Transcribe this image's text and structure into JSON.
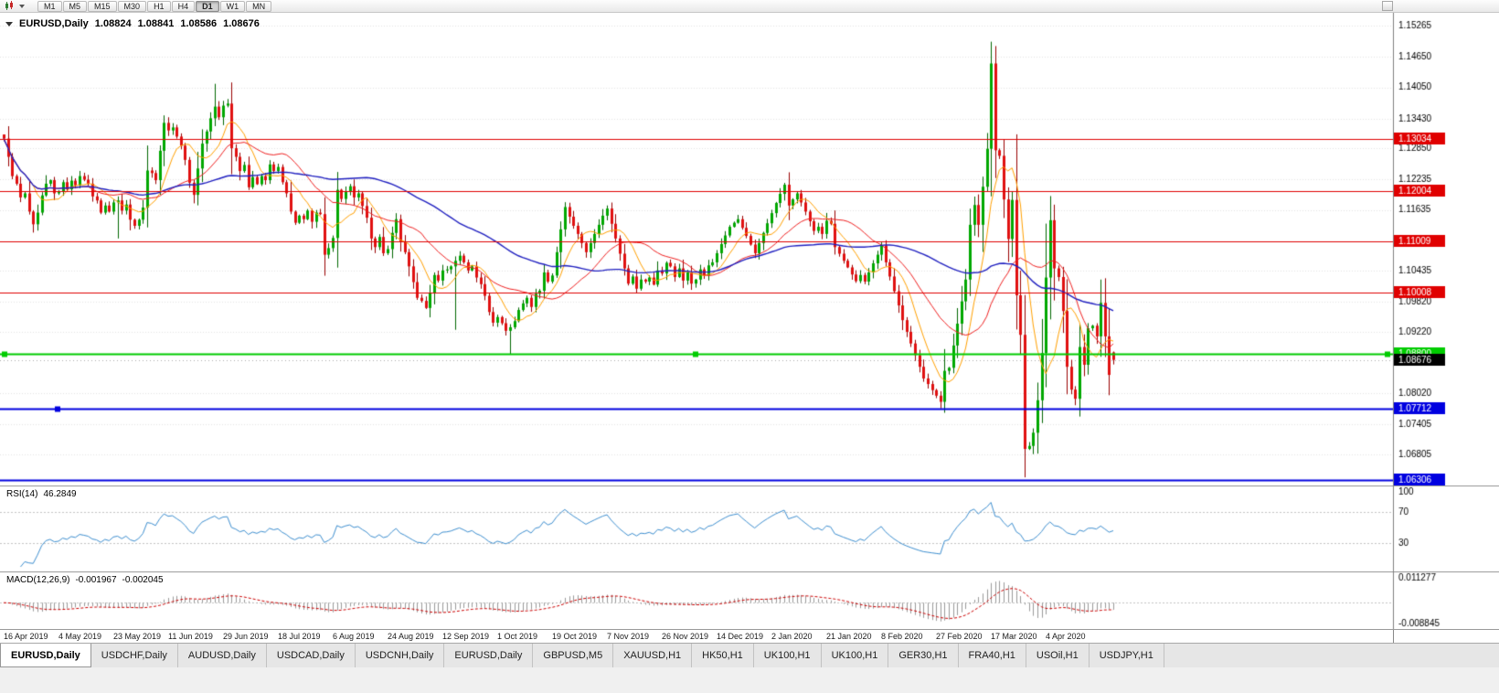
{
  "colors": {
    "bull": "#00A800",
    "bear": "#E01010",
    "bull_wick": "#006600",
    "bear_wick": "#990000",
    "ma_fast": "#FFA000",
    "ma_mid": "#F02020",
    "ma_slow": "#2020C0",
    "rsi_line": "#3E8FD0",
    "macd_hist": "#9A9A9A",
    "macd_signal": "#CC0000",
    "grid": "#E4E4E4",
    "panel_border": "#999999",
    "current_price_bg": "#000000"
  },
  "toolbar": {
    "timeframes": [
      "M1",
      "M5",
      "M15",
      "M30",
      "H1",
      "H4",
      "D1",
      "W1",
      "MN"
    ],
    "active_timeframe": "D1"
  },
  "chart": {
    "title_symbol": "EURUSD,Daily",
    "ohlc": {
      "open": "1.08824",
      "high": "1.08841",
      "low": "1.08586",
      "close": "1.08676"
    },
    "scale_labels": [
      "1.15265",
      "1.14650",
      "1.14050",
      "1.13430",
      "1.12850",
      "1.12235",
      "1.11635",
      "1.10435",
      "1.09820",
      "1.09220",
      "1.08020",
      "1.07405",
      "1.06805"
    ],
    "hlines": [
      {
        "price": 1.13034,
        "label": "1.13034",
        "color": "#E00000",
        "width": 1
      },
      {
        "price": 1.12004,
        "label": "1.12004",
        "color": "#E00000",
        "width": 1
      },
      {
        "price": 1.11009,
        "label": "1.11009",
        "color": "#E00000",
        "width": 1
      },
      {
        "price": 1.10008,
        "label": "1.10008",
        "color": "#E00000",
        "width": 1
      },
      {
        "price": 1.088,
        "label": "1.08800",
        "color": "#00CC00",
        "width": 2,
        "handles": [
          2,
          758,
          1515
        ]
      },
      {
        "price": 1.07712,
        "label": "1.07712",
        "color": "#0000E0",
        "width": 2,
        "handles": [
          60
        ]
      },
      {
        "price": 1.06306,
        "label": "1.06306",
        "color": "#0000E0",
        "width": 2
      }
    ],
    "current_price": {
      "value": 1.08676,
      "label": "1.08676"
    }
  },
  "rsi": {
    "name": "RSI(14)",
    "value": "46.2849",
    "period": 14,
    "levels": [
      70,
      30
    ],
    "scale_labels": [
      "100",
      "70",
      "30"
    ]
  },
  "macd": {
    "name": "MACD(12,26,9)",
    "macd_value": "-0.001967",
    "signal_value": "-0.002045",
    "fast": 12,
    "slow": 26,
    "signal": 9,
    "scale_top": "0.011277",
    "scale_bottom": "-0.008845"
  },
  "chart_data": {
    "type": "candlestick+indicators",
    "symbol": "EURUSD",
    "timeframe": "Daily",
    "price_range": [
      1.062,
      1.1552
    ],
    "x_label_step": 13,
    "x_labels": [
      "16 Apr 2019",
      "4 May 2019",
      "23 May 2019",
      "11 Jun 2019",
      "29 Jun 2019",
      "18 Jul 2019",
      "6 Aug 2019",
      "24 Aug 2019",
      "12 Sep 2019",
      "1 Oct 2019",
      "19 Oct 2019",
      "7 Nov 2019",
      "26 Nov 2019",
      "14 Dec 2019",
      "2 Jan 2020",
      "21 Jan 2020",
      "8 Feb 2020",
      "27 Feb 2020",
      "17 Mar 2020",
      "4 Apr 2020"
    ],
    "ma_periods": {
      "fast": 8,
      "mid": 21,
      "slow": 55
    },
    "closes": [
      1.1304,
      1.1268,
      1.123,
      1.1215,
      1.1188,
      1.1196,
      1.116,
      1.1135,
      1.1158,
      1.1192,
      1.1215,
      1.1222,
      1.1196,
      1.1199,
      1.1218,
      1.1204,
      1.1221,
      1.1212,
      1.123,
      1.1223,
      1.1215,
      1.119,
      1.1182,
      1.1158,
      1.1172,
      1.116,
      1.1178,
      1.1182,
      1.1162,
      1.1174,
      1.1144,
      1.1132,
      1.1144,
      1.1168,
      1.1241,
      1.1236,
      1.1222,
      1.128,
      1.1335,
      1.132,
      1.1326,
      1.1308,
      1.129,
      1.1262,
      1.1217,
      1.1193,
      1.1245,
      1.1294,
      1.1318,
      1.1344,
      1.1367,
      1.1346,
      1.1369,
      1.1373,
      1.1285,
      1.1268,
      1.124,
      1.1252,
      1.1208,
      1.1228,
      1.1214,
      1.123,
      1.1222,
      1.1253,
      1.124,
      1.1248,
      1.1218,
      1.1196,
      1.116,
      1.1138,
      1.1152,
      1.1145,
      1.1162,
      1.114,
      1.1158,
      1.1155,
      1.1075,
      1.1088,
      1.1108,
      1.1203,
      1.1185,
      1.12,
      1.121,
      1.1188,
      1.1196,
      1.1171,
      1.1148,
      1.1107,
      1.109,
      1.111,
      1.1078,
      1.1086,
      1.1118,
      1.1145,
      1.1101,
      1.108,
      1.1052,
      1.1021,
      1.099,
      1.0984,
      1.097,
      1.1,
      1.1035,
      1.1024,
      1.1044,
      1.1046,
      1.1052,
      1.1063,
      1.1073,
      1.106,
      1.1044,
      1.1052,
      1.103,
      1.1017,
      1.0994,
      1.0962,
      1.0941,
      1.0952,
      1.094,
      1.0925,
      1.0932,
      1.0944,
      1.0966,
      1.0979,
      1.099,
      1.0972,
      1.0998,
      1.1004,
      1.104,
      1.1022,
      1.1034,
      1.108,
      1.1125,
      1.1169,
      1.115,
      1.1132,
      1.1116,
      1.1098,
      1.108,
      1.1098,
      1.1116,
      1.1134,
      1.1152,
      1.1166,
      1.1136,
      1.1107,
      1.1077,
      1.1048,
      1.1018,
      1.1032,
      1.1008,
      1.1026,
      1.1022,
      1.103,
      1.1016,
      1.1044,
      1.1038,
      1.1059,
      1.1052,
      1.1031,
      1.1048,
      1.1024,
      1.104,
      1.1018,
      1.1026,
      1.1046,
      1.1034,
      1.1054,
      1.106,
      1.1078,
      1.1096,
      1.1113,
      1.113,
      1.1138,
      1.1145,
      1.1128,
      1.1112,
      1.1095,
      1.1078,
      1.1098,
      1.1118,
      1.1137,
      1.1157,
      1.1177,
      1.1195,
      1.1213,
      1.1172,
      1.1184,
      1.1196,
      1.1178,
      1.116,
      1.1141,
      1.1122,
      1.113,
      1.1116,
      1.1142,
      1.1136,
      1.109,
      1.1077,
      1.1063,
      1.105,
      1.1036,
      1.1023,
      1.1035,
      1.1022,
      1.104,
      1.1058,
      1.1075,
      1.1093,
      1.106,
      1.1032,
      1.1003,
      1.0975,
      1.0946,
      1.0923,
      1.09,
      1.0877,
      1.0854,
      1.0831,
      1.082,
      1.0808,
      1.0797,
      1.0785,
      1.0846,
      1.0852,
      1.0896,
      1.0939,
      1.0983,
      1.1026,
      1.1134,
      1.1173,
      1.1134,
      1.1209,
      1.1284,
      1.1452,
      1.1281,
      1.127,
      1.1184,
      1.1106,
      1.1183,
      1.0995,
      1.0917,
      1.0692,
      1.0698,
      1.0724,
      1.0788,
      1.0881,
      1.103,
      1.1143,
      1.1048,
      1.1031,
      1.0964,
      1.0854,
      1.0809,
      1.0791,
      1.0893,
      1.0858,
      1.093,
      1.0935,
      1.0914,
      1.098,
      1.0914,
      1.0838,
      1.08676
    ],
    "overrides": {
      "0": {
        "open": 1.1312
      },
      "27": {
        "low": 1.1107
      },
      "50": {
        "high": 1.1412
      },
      "107": {
        "low": 1.0927
      },
      "120": {
        "low": 1.0879
      },
      "222": {
        "low": 1.0772
      },
      "234": {
        "high": 1.1495
      },
      "242": {
        "low": 1.0636
      },
      "263": {
        "open": 1.08824,
        "high": 1.08841,
        "low": 1.08586,
        "close": 1.08676
      }
    }
  },
  "tabs": {
    "active_index": 0,
    "items": [
      "EURUSD,Daily",
      "USDCHF,Daily",
      "AUDUSD,Daily",
      "USDCAD,Daily",
      "USDCNH,Daily",
      "EURUSD,Daily",
      "GBPUSD,M5",
      "XAUUSD,H1",
      "HK50,H1",
      "UK100,H1",
      "UK100,H1",
      "GER30,H1",
      "FRA40,H1",
      "USOil,H1",
      "USDJPY,H1"
    ]
  }
}
